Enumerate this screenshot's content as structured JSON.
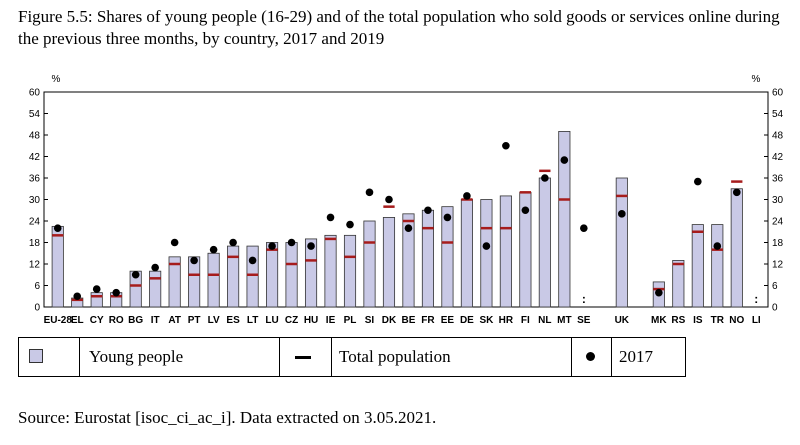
{
  "figure": {
    "title": "Figure 5.5: Shares of young people (16-29) and of the total population who sold goods or services online during the previous three months, by country, 2017 and 2019",
    "source": "Source: Eurostat [isoc_ci_ac_i]. Data extracted on 3.05.2021."
  },
  "legend": {
    "young_label": "Young people",
    "total_label": "Total population",
    "year_label": "2017"
  },
  "chart_data": {
    "type": "bar",
    "title": "",
    "xlabel": "",
    "ylabel": "%",
    "ylim": [
      0,
      60
    ],
    "yticks": [
      0,
      6,
      12,
      18,
      24,
      30,
      36,
      42,
      48,
      54,
      60
    ],
    "grid": false,
    "categories": [
      "EU-28",
      "EL",
      "CY",
      "RO",
      "BG",
      "IT",
      "AT",
      "PT",
      "LV",
      "ES",
      "LT",
      "LU",
      "CZ",
      "HU",
      "IE",
      "PL",
      "SI",
      "DK",
      "BE",
      "FR",
      "EE",
      "DE",
      "SK",
      "HR",
      "FI",
      "NL",
      "MT",
      "SE",
      "UK",
      "MK",
      "RS",
      "IS",
      "TR",
      "NO",
      "LI"
    ],
    "series": [
      {
        "name": "Young people",
        "kind": "bar",
        "values": [
          22.5,
          2.5,
          4,
          4,
          10,
          10,
          14,
          14,
          15,
          17,
          17,
          18,
          18,
          19,
          20,
          20,
          24,
          25,
          26,
          27,
          28,
          30,
          30,
          31,
          32,
          36,
          49,
          null,
          36,
          7,
          13,
          23,
          23,
          33,
          null
        ]
      },
      {
        "name": "Total population",
        "kind": "line-marker",
        "values": [
          20,
          2,
          3,
          3,
          6,
          8,
          12,
          9,
          9,
          14,
          9,
          16,
          12,
          13,
          19,
          14,
          18,
          28,
          24,
          22,
          18,
          30,
          22,
          22,
          32,
          38,
          30,
          null,
          31,
          5,
          12,
          21,
          16,
          35,
          null
        ]
      },
      {
        "name": "2017",
        "kind": "dot",
        "values": [
          22,
          3,
          5,
          4,
          9,
          11,
          18,
          13,
          16,
          18,
          13,
          17,
          18,
          17,
          25,
          23,
          32,
          30,
          22,
          27,
          25,
          31,
          17,
          45,
          27,
          36,
          41,
          22,
          26,
          4,
          null,
          35,
          17,
          32,
          null
        ]
      }
    ],
    "not_available_marker": ":",
    "not_available": [
      "SE",
      "LI"
    ],
    "colors": {
      "bar_fill": "#c9c9e6",
      "bar_stroke": "#333333",
      "total_marker": "#a61c1c",
      "dot": "#000000"
    }
  }
}
